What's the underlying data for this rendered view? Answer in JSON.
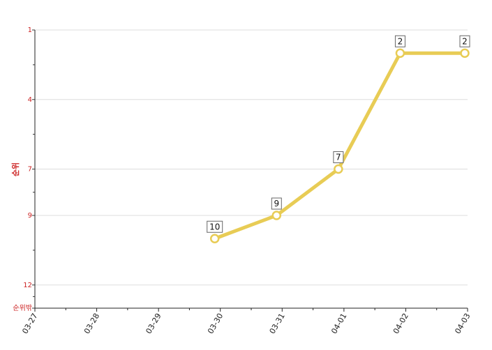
{
  "chart_data": {
    "type": "line",
    "ylabel": "순위",
    "y_inverted": true,
    "ylim": [
      1,
      13
    ],
    "y_ticks": [
      {
        "value": 1,
        "label": "1"
      },
      {
        "value": 4,
        "label": "4"
      },
      {
        "value": 7,
        "label": "7"
      },
      {
        "value": 9,
        "label": "9"
      },
      {
        "value": 12,
        "label": "12"
      },
      {
        "value": 13,
        "label": "순위밖"
      }
    ],
    "categories": [
      "03-27",
      "03-28",
      "03-29",
      "03-30",
      "03-31",
      "04-01",
      "04-02",
      "04-03"
    ],
    "series": [
      {
        "color": "#e8cc55",
        "values": [
          null,
          null,
          null,
          10,
          9,
          7,
          2,
          2
        ],
        "labels": [
          "",
          "",
          "",
          "10",
          "9",
          "7",
          "2",
          "2"
        ]
      }
    ],
    "grid": true
  }
}
